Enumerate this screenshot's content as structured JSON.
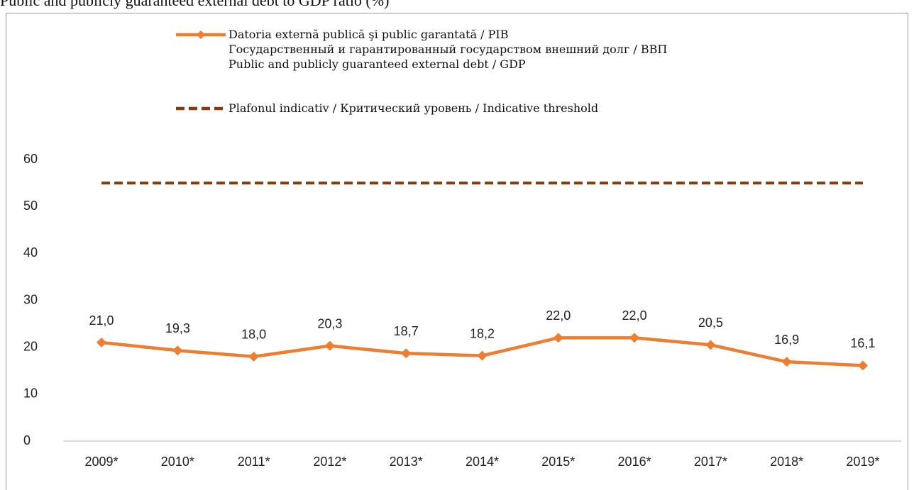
{
  "chart_data": {
    "type": "line",
    "title": "Public and publicly guaranteed external debt to GDP ratio (%)",
    "categories": [
      "2009*",
      "2010*",
      "2011*",
      "2012*",
      "2013*",
      "2014*",
      "2015*",
      "2016*",
      "2017*",
      "2018*",
      "2019*"
    ],
    "series": [
      {
        "name": "Datoria externă publică şi public garantată / PIB\nГосударственный и гарантированный государством внешний долг / ВВП\nPublic and publicly guaranteed external debt / GDP",
        "color": "#ed7d31",
        "style": "solid",
        "markers": true,
        "values": [
          21.0,
          19.3,
          18.0,
          20.3,
          18.7,
          18.2,
          22.0,
          22.0,
          20.5,
          16.9,
          16.1
        ],
        "value_labels": [
          "21,0",
          "19,3",
          "18,0",
          "20,3",
          "18,7",
          "18,2",
          "22,0",
          "22,0",
          "20,5",
          "16,9",
          "16,1"
        ]
      },
      {
        "name": "Plafonul indicativ / Критический уровень / Indicative threshold",
        "color": "#843c0c",
        "style": "dashed",
        "markers": false,
        "values": [
          55,
          55,
          55,
          55,
          55,
          55,
          55,
          55,
          55,
          55,
          55
        ]
      }
    ],
    "ylim": [
      0,
      60
    ],
    "yticks": [
      0,
      10,
      20,
      30,
      40,
      50,
      60
    ],
    "grid": false
  }
}
